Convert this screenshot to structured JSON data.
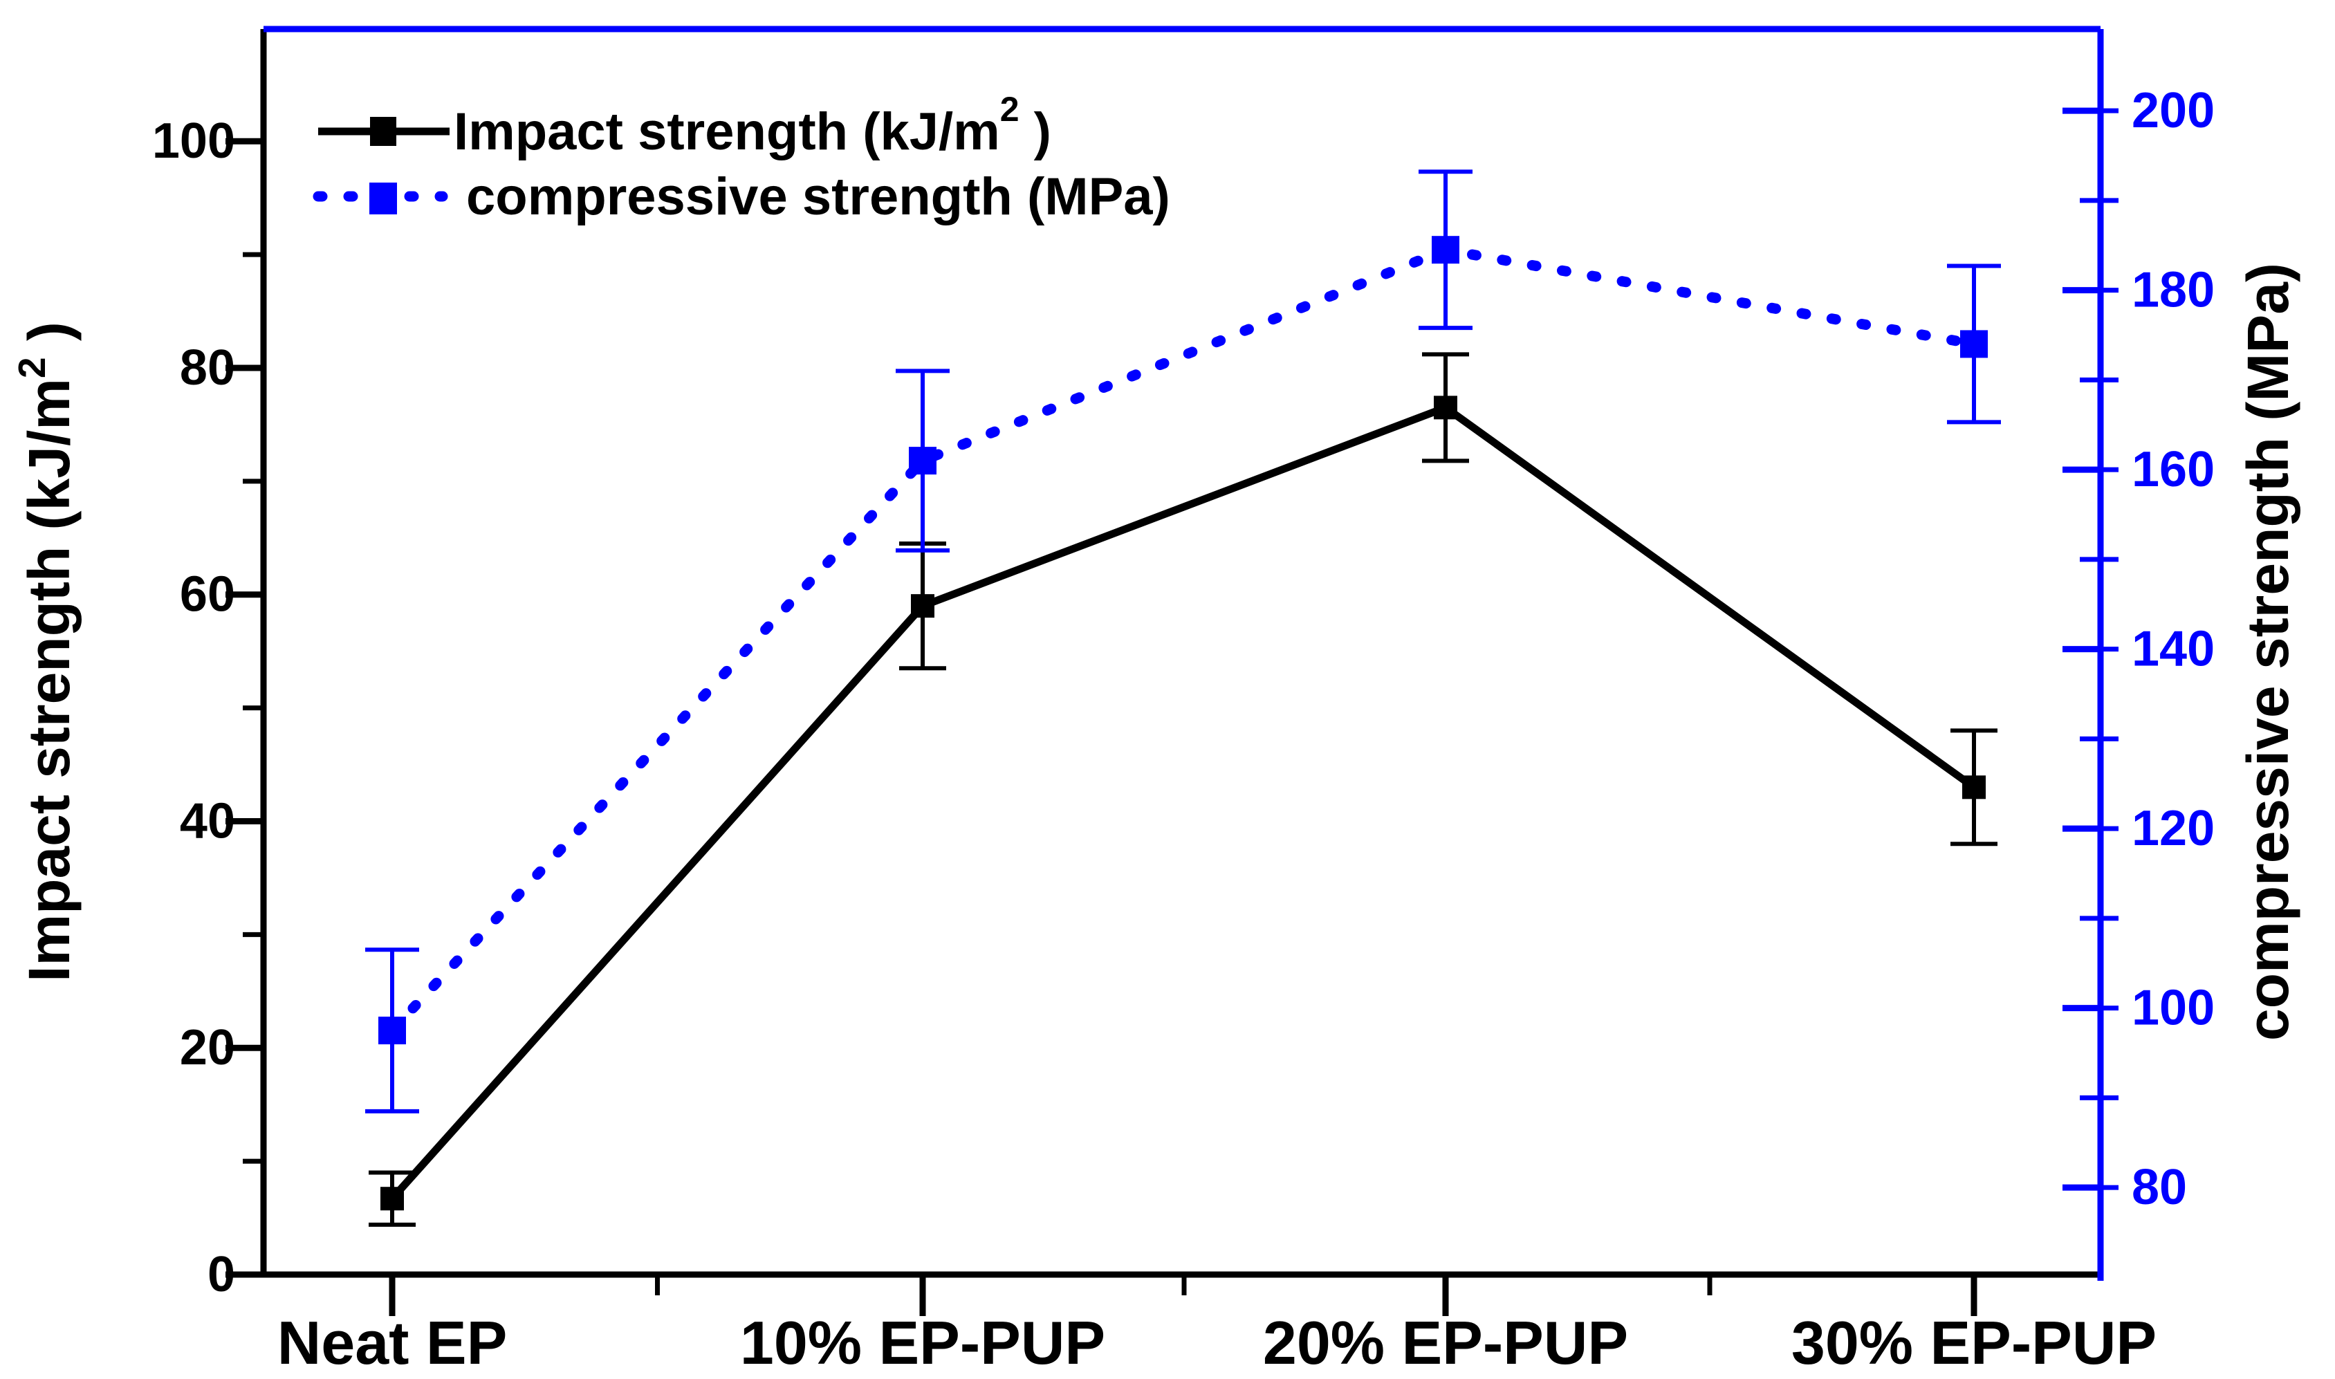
{
  "chart_data": {
    "type": "line",
    "title": "",
    "background": "#ffffff",
    "categories": [
      "Neat EP",
      "10% EP-PUP",
      "20% EP-PUP",
      "30% EP-PUP"
    ],
    "series": [
      {
        "name": "Impact strength (kJ/m2 )",
        "name_parts": [
          {
            "t": "Impact strength (kJ/m"
          },
          {
            "t": "2",
            "sup": true
          },
          {
            "t": " )"
          }
        ],
        "axis": "left",
        "color": "#000000",
        "line_style": "solid",
        "marker": "filled-square",
        "values": [
          6.7,
          59,
          76.5,
          43
        ],
        "errors": [
          2.3,
          5.5,
          4.7,
          5.0
        ]
      },
      {
        "name": "compressive strength (MPa)",
        "name_parts": [
          {
            "t": "compressive strength (MPa)"
          }
        ],
        "axis": "right",
        "color": "#0000ff",
        "line_style": "dotted",
        "marker": "filled-square",
        "values": [
          97.5,
          161,
          184.5,
          174
        ],
        "errors": [
          9,
          10,
          8.7,
          8.7
        ]
      }
    ],
    "left_axis": {
      "title": "Impact strength (kJ/m2 )",
      "title_parts": [
        {
          "t": "Impact strength (kJ/m"
        },
        {
          "t": "2",
          "sup": true
        },
        {
          "t": " )"
        }
      ],
      "color": "#000000",
      "range": [
        0,
        109.9
      ],
      "major_ticks": [
        0,
        20,
        40,
        60,
        80,
        100
      ],
      "minor_ticks": [
        10,
        30,
        50,
        70,
        90
      ]
    },
    "right_axis": {
      "title": "compressive strength (MPa)",
      "title_parts": [
        {
          "t": "compressive strength (MPa)"
        }
      ],
      "color": "#0000ff",
      "title_color": "#000000",
      "range": [
        70.3,
        209.1
      ],
      "major_ticks": [
        80,
        100,
        120,
        140,
        160,
        180,
        200
      ],
      "minor_ticks": [
        90,
        110,
        130,
        150,
        170,
        190
      ],
      "outer_stub_ticks": [
        80,
        90,
        100,
        110,
        120,
        130,
        140,
        150,
        160,
        170,
        180,
        190,
        200
      ]
    },
    "x_axis": {
      "labels": [
        "Neat EP",
        "10% EP-PUP",
        "20% EP-PUP",
        "30% EP-PUP"
      ],
      "color": "#000000"
    },
    "legend": {
      "position": "top-left",
      "entries": [
        {
          "label": "Impact strength (kJ/m2 )",
          "color": "#000000",
          "line_style": "solid"
        },
        {
          "label": "compressive strength (MPa)",
          "color": "#0000ff",
          "line_style": "dotted"
        }
      ]
    },
    "grid": false
  }
}
